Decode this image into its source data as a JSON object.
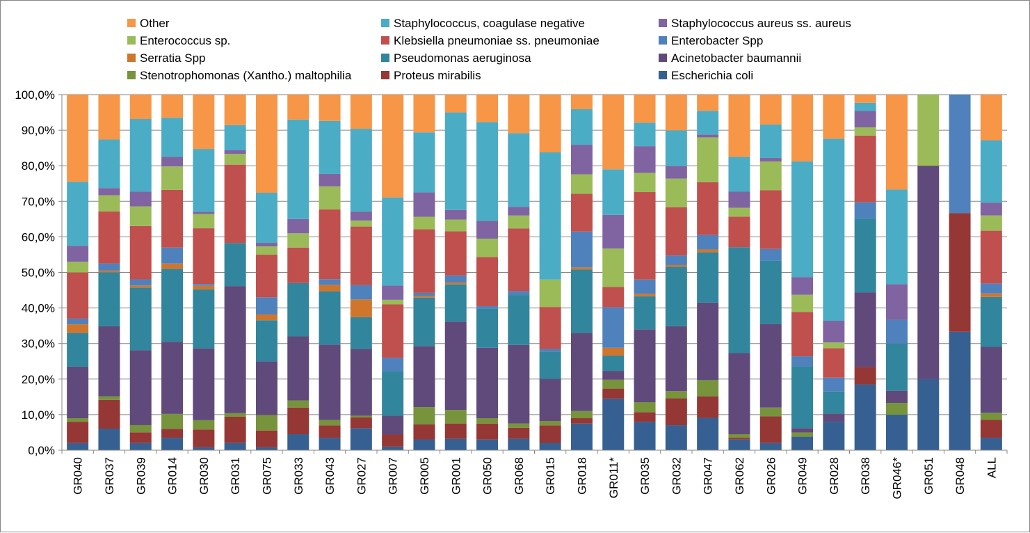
{
  "chart_data": {
    "type": "bar",
    "stacked": true,
    "percent": true,
    "title": "",
    "xlabel": "",
    "ylabel": "",
    "ylim": [
      0,
      100
    ],
    "y_ticks": [
      "0,0%",
      "10,0%",
      "20,0%",
      "30,0%",
      "40,0%",
      "50,0%",
      "60,0%",
      "70,0%",
      "80,0%",
      "90,0%",
      "100,0%"
    ],
    "grid": true,
    "legend_position": "top",
    "categories": [
      "GR040",
      "GR037",
      "GR039",
      "GR014",
      "GR030",
      "GR031",
      "GR075",
      "GR033",
      "GR043",
      "GR027",
      "GR007",
      "GR005",
      "GR001",
      "GR050",
      "GR068",
      "GR015",
      "GR018",
      "GR011*",
      "GR035",
      "GR032",
      "GR047",
      "GR062",
      "GR026",
      "GR049",
      "GR028",
      "GR038",
      "GR046*",
      "GR051",
      "GR048",
      "ALL"
    ],
    "legend": [
      {
        "name": "Other",
        "color": "#f79646"
      },
      {
        "name": "Staphylococcus, coagulase negative",
        "color": "#4bacc6"
      },
      {
        "name": "Staphylococcus aureus ss. aureus",
        "color": "#8064a2"
      },
      {
        "name": "Enterococcus sp.",
        "color": "#9bbb59"
      },
      {
        "name": "Klebsiella pneumoniae ss. pneumoniae",
        "color": "#c0504d"
      },
      {
        "name": "Enterobacter Spp",
        "color": "#4f81bd"
      },
      {
        "name": "Serratia Spp",
        "color": "#d0762c"
      },
      {
        "name": "Pseudomonas aeruginosa",
        "color": "#31859c"
      },
      {
        "name": "Acinetobacter baumannii",
        "color": "#604a7b"
      },
      {
        "name": "Stenotrophomonas (Xantho.) maltophilia",
        "color": "#77933c"
      },
      {
        "name": "Proteus mirabilis",
        "color": "#953735"
      },
      {
        "name": "Escherichia coli",
        "color": "#376092"
      }
    ],
    "series": [
      {
        "name": "Escherichia coli",
        "color": "#376092",
        "values": [
          2,
          6,
          2,
          3.5,
          0.8,
          2,
          0.8,
          4.5,
          3.5,
          6.2,
          1,
          3,
          3.2,
          3,
          3.2,
          2,
          7.5,
          14.5,
          8,
          7,
          9,
          3,
          2,
          3.8,
          8,
          18.5,
          10,
          20,
          33.3,
          3.5
        ]
      },
      {
        "name": "Proteus mirabilis",
        "color": "#953735",
        "values": [
          6,
          8,
          3,
          2.5,
          5,
          7.3,
          4.7,
          7.5,
          3.5,
          3,
          3.4,
          4.2,
          4.3,
          4.5,
          3.1,
          4.8,
          1.5,
          2.8,
          2.7,
          7.5,
          6,
          0.5,
          7.5,
          0,
          0,
          4.9,
          0,
          0,
          33.4,
          5
        ]
      },
      {
        "name": "Stenotrophomonas (Xantho.) maltophilia",
        "color": "#77933c",
        "values": [
          1,
          1,
          2,
          4.2,
          2.6,
          1,
          4.3,
          2,
          1.5,
          0.5,
          0,
          4.8,
          3.8,
          1.5,
          1.2,
          1.2,
          2,
          2.5,
          2.8,
          2,
          4.5,
          1,
          2.5,
          1.2,
          0,
          0,
          3.3,
          0,
          0,
          2
        ]
      },
      {
        "name": "Acinetobacter baumannii",
        "color": "#604a7b",
        "values": [
          14.5,
          19.5,
          20.9,
          20.3,
          20.1,
          35.4,
          15,
          18,
          21.2,
          18.8,
          5.3,
          17,
          24.8,
          19.8,
          22,
          11.5,
          22,
          2.5,
          20.5,
          18.2,
          21.6,
          22.8,
          23.5,
          1.2,
          2.3,
          21,
          3.4,
          60,
          0,
          18.5
        ]
      },
      {
        "name": "Pseudomonas aeruginosa",
        "color": "#31859c",
        "values": [
          9.5,
          15,
          17.5,
          20.5,
          16.5,
          12,
          11.5,
          15,
          15,
          8.9,
          12.5,
          13.5,
          10.5,
          11,
          14,
          7.5,
          17.8,
          4.3,
          9.3,
          16.6,
          14,
          29.8,
          17.8,
          17.4,
          6.2,
          20.8,
          13.3,
          0,
          0,
          14
        ]
      },
      {
        "name": "Serratia Spp",
        "color": "#d0762c",
        "values": [
          2.4,
          0.5,
          0.6,
          1.5,
          1,
          0,
          1.6,
          0,
          1.8,
          5,
          0,
          0.5,
          0.5,
          0,
          0,
          0,
          0.6,
          2.2,
          0.7,
          0.5,
          0.8,
          0,
          0,
          0,
          0,
          0,
          0,
          0,
          0,
          1
        ]
      },
      {
        "name": "Enterobacter Spp",
        "color": "#4f81bd",
        "values": [
          1.6,
          2,
          1.7,
          4.5,
          0.5,
          0,
          4.8,
          0,
          1.6,
          4,
          3.8,
          0.8,
          2,
          0.7,
          1.1,
          0.7,
          10.1,
          11.4,
          4,
          2.7,
          4,
          0,
          3.3,
          2.8,
          3.9,
          4.5,
          6.7,
          0,
          33.3,
          2.8
        ]
      },
      {
        "name": "Klebsiella pneumoniae ss. pneumoniae",
        "color": "#c0504d",
        "values": [
          13,
          14.5,
          14.9,
          16.2,
          15.6,
          21.8,
          11.9,
          10,
          19.6,
          16.5,
          15,
          17.7,
          12.4,
          13.8,
          17.6,
          11.5,
          10.6,
          5.7,
          24.6,
          13.5,
          14.7,
          8.6,
          16.5,
          12.5,
          8.3,
          18.8,
          0,
          0,
          0,
          14.8
        ]
      },
      {
        "name": "Enterococcus sp.",
        "color": "#9bbb59",
        "values": [
          3,
          4.5,
          5.5,
          6.6,
          4,
          3,
          2.3,
          4,
          6.5,
          1.7,
          1.3,
          3.5,
          3.3,
          5.2,
          3.6,
          7.5,
          5.5,
          10.8,
          5.4,
          8,
          12.5,
          2.5,
          8.1,
          4.8,
          1.6,
          2.3,
          0,
          20,
          0,
          4.3
        ]
      },
      {
        "name": "Staphylococcus aureus ss. aureus",
        "color": "#8064a2",
        "values": [
          4.5,
          2,
          4.1,
          2.7,
          0.6,
          1,
          1,
          4,
          3.5,
          2.5,
          4,
          6.8,
          2.7,
          5,
          2.4,
          0,
          8.3,
          9.5,
          7.5,
          3.5,
          0.8,
          4.5,
          1,
          5,
          6.1,
          4.6,
          10,
          0,
          0,
          3.6
        ]
      },
      {
        "name": "Staphylococcus, coagulase negative",
        "color": "#4bacc6",
        "values": [
          18,
          13.5,
          20.3,
          11,
          17.6,
          7,
          14,
          28,
          14.9,
          23.3,
          24.8,
          16.7,
          27.4,
          27.8,
          20.7,
          34.8,
          10,
          12.8,
          6.6,
          10,
          6.6,
          9.8,
          9.4,
          32.5,
          51.2,
          2.3,
          26.6,
          0,
          0,
          17.5
        ]
      },
      {
        "name": "Other",
        "color": "#f79646",
        "values": [
          24.5,
          12.5,
          6.8,
          6.5,
          15.2,
          8.5,
          27.4,
          7,
          7.4,
          9.6,
          28.9,
          10.5,
          5,
          7.7,
          10.8,
          15.8,
          4.1,
          21,
          7.9,
          10,
          4.5,
          17.5,
          8.4,
          18.8,
          12.4,
          2.3,
          26.7,
          0,
          0,
          12.8
        ]
      }
    ]
  }
}
